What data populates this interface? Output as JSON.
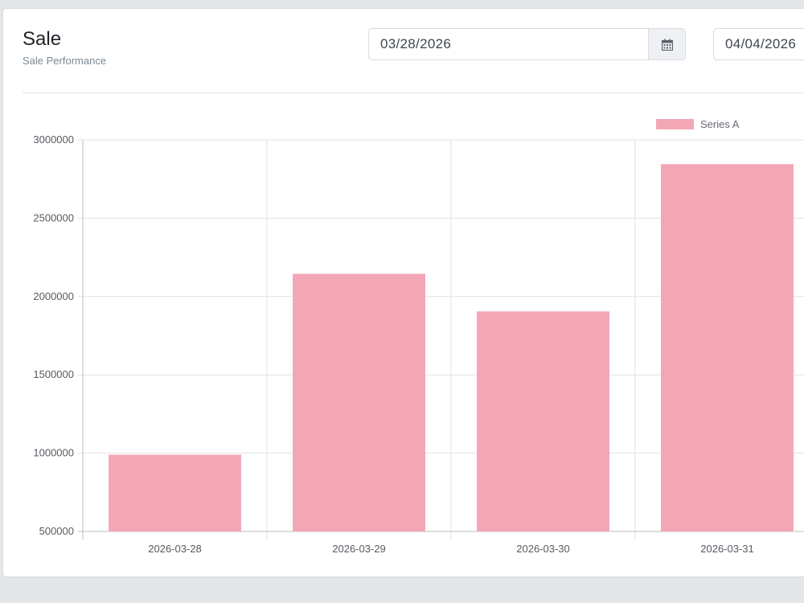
{
  "header": {
    "title": "Sale",
    "subtitle": "Sale Performance"
  },
  "filters": {
    "start_date": "03/28/2026",
    "end_date": "04/04/2026",
    "calendar_icon": "calendar-icon"
  },
  "chart_data": {
    "type": "bar",
    "categories": [
      "2026-03-28",
      "2026-03-29",
      "2026-03-30",
      "2026-03-31"
    ],
    "series": [
      {
        "name": "Series A",
        "values": [
          990000,
          2145000,
          1905000,
          2845000
        ],
        "color": "#f3a7b6"
      }
    ],
    "ylim": [
      500000,
      3000000
    ],
    "yticks": [
      500000,
      1000000,
      1500000,
      2000000,
      2500000,
      3000000
    ],
    "legend": "top-right",
    "grid": true
  }
}
